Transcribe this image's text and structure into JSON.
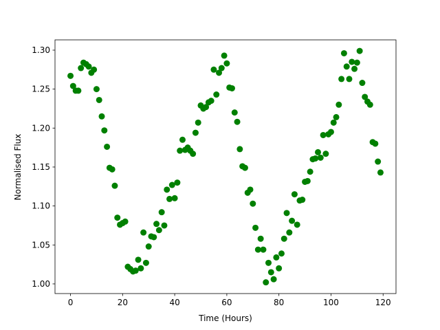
{
  "chart_data": {
    "type": "scatter",
    "x_label": "Time (Hours)",
    "y_label": "Normalised Flux",
    "series": [
      {
        "color": "#008000",
        "x": [
          0,
          1,
          2,
          3,
          4,
          5,
          6,
          7,
          8,
          9,
          10,
          11,
          12,
          13,
          14,
          15,
          16,
          17,
          18,
          19,
          20,
          21,
          22,
          23,
          24,
          25,
          26,
          27,
          28,
          29,
          30,
          31,
          32,
          33,
          34,
          35,
          36,
          37,
          38,
          39,
          40,
          41,
          42,
          43,
          44,
          45,
          46,
          47,
          48,
          49,
          50,
          51,
          52,
          53,
          54,
          55,
          56,
          57,
          58,
          59,
          60,
          61,
          62,
          63,
          64,
          65,
          66,
          67,
          68,
          69,
          70,
          71,
          72,
          73,
          74,
          75,
          76,
          77,
          78,
          79,
          80,
          81,
          82,
          83,
          84,
          85,
          86,
          87,
          88,
          89,
          90,
          91,
          92,
          93,
          94,
          95,
          96,
          97,
          98,
          99,
          100,
          101,
          102,
          103,
          104,
          105,
          106,
          107,
          108,
          109,
          110,
          111,
          112,
          113,
          114,
          115,
          116,
          117,
          118,
          119
        ],
        "values": [
          1.267,
          1.254,
          1.248,
          1.248,
          1.277,
          1.284,
          1.282,
          1.279,
          1.271,
          1.275,
          1.25,
          1.236,
          1.215,
          1.197,
          1.176,
          1.149,
          1.147,
          1.126,
          1.085,
          1.076,
          1.078,
          1.08,
          1.022,
          1.019,
          1.016,
          1.017,
          1.031,
          1.02,
          1.066,
          1.027,
          1.048,
          1.061,
          1.06,
          1.077,
          1.069,
          1.092,
          1.075,
          1.121,
          1.109,
          1.127,
          1.11,
          1.13,
          1.171,
          1.185,
          1.172,
          1.175,
          1.171,
          1.167,
          1.194,
          1.207,
          1.229,
          1.225,
          1.227,
          1.233,
          1.235,
          1.275,
          1.243,
          1.271,
          1.277,
          1.293,
          1.283,
          1.252,
          1.251,
          1.22,
          1.208,
          1.173,
          1.151,
          1.149,
          1.117,
          1.121,
          1.103,
          1.072,
          1.044,
          1.058,
          1.044,
          1.002,
          1.027,
          1.015,
          1.006,
          1.034,
          1.02,
          1.039,
          1.058,
          1.091,
          1.066,
          1.081,
          1.115,
          1.076,
          1.107,
          1.108,
          1.131,
          1.132,
          1.144,
          1.16,
          1.161,
          1.169,
          1.162,
          1.191,
          1.167,
          1.192,
          1.195,
          1.207,
          1.214,
          1.23,
          1.263,
          1.296,
          1.279,
          1.263,
          1.285,
          1.276,
          1.284,
          1.299,
          1.258,
          1.24,
          1.234,
          1.23,
          1.182,
          1.18,
          1.157,
          1.143
        ]
      }
    ],
    "xlim": [
      -5.95,
      124.95
    ],
    "xticks": [
      0,
      20,
      40,
      60,
      80,
      100,
      120
    ],
    "ylim": [
      0.9876,
      1.3132
    ],
    "yticks": [
      {
        "value": 1.0,
        "label": "1.00"
      },
      {
        "value": 1.05,
        "label": "1.05"
      },
      {
        "value": 1.1,
        "label": "1.10"
      },
      {
        "value": 1.15,
        "label": "1.15"
      },
      {
        "value": 1.2,
        "label": "1.20"
      },
      {
        "value": 1.25,
        "label": "1.25"
      },
      {
        "value": 1.3,
        "label": "1.30"
      }
    ],
    "grid": false
  }
}
